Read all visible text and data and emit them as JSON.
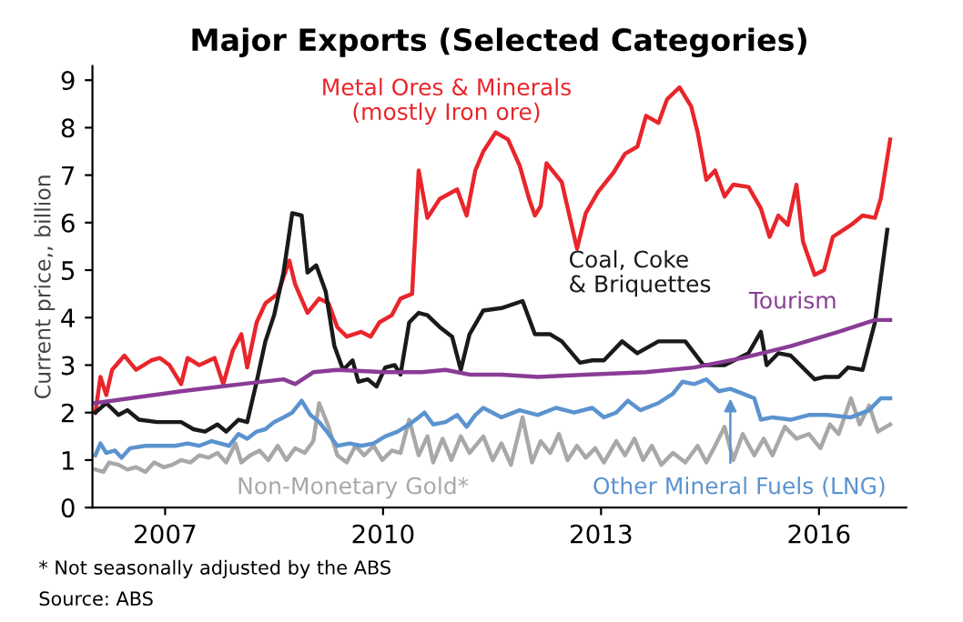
{
  "chart_data": {
    "type": "line",
    "title": "Major Exports (Selected Categories)",
    "ylabel": "Current price,, billion",
    "xlim": [
      2006.0,
      2017.2
    ],
    "xticks": [
      2007,
      2010,
      2013,
      2016
    ],
    "ylim": [
      0,
      9.3
    ],
    "yticks": [
      0,
      1,
      2,
      3,
      4,
      5,
      6,
      7,
      8,
      9
    ],
    "grid": false,
    "legend": false,
    "marker": "none",
    "line_style": "solid",
    "annotations": [
      "* Not seasonally adjusted by the ABS",
      "Source: ABS"
    ],
    "series": [
      {
        "name": "Metal Ores & Minerals\n(mostly Iron ore)",
        "color": "#e8262b",
        "x": [
          2006.04,
          2006.11,
          2006.19,
          2006.27,
          2006.44,
          2006.6,
          2006.81,
          2006.93,
          2007.06,
          2007.22,
          2007.31,
          2007.47,
          2007.68,
          2007.8,
          2007.93,
          2008.05,
          2008.13,
          2008.26,
          2008.38,
          2008.55,
          2008.71,
          2008.79,
          2008.96,
          2009.12,
          2009.25,
          2009.37,
          2009.5,
          2009.7,
          2009.83,
          2009.95,
          2010.12,
          2010.24,
          2010.4,
          2010.49,
          2010.61,
          2010.78,
          2011.02,
          2011.15,
          2011.27,
          2011.38,
          2011.55,
          2011.72,
          2011.88,
          2012.01,
          2012.09,
          2012.17,
          2012.25,
          2012.46,
          2012.67,
          2012.79,
          2012.96,
          2013.17,
          2013.33,
          2013.5,
          2013.62,
          2013.79,
          2013.91,
          2014.08,
          2014.24,
          2014.33,
          2014.45,
          2014.57,
          2014.7,
          2014.82,
          2015.03,
          2015.2,
          2015.32,
          2015.44,
          2015.57,
          2015.69,
          2015.78,
          2015.94,
          2016.07,
          2016.19,
          2016.44,
          2016.6,
          2016.77,
          2016.85,
          2016.98
        ],
        "values": [
          2.0,
          2.75,
          2.37,
          2.9,
          3.2,
          2.9,
          3.1,
          3.15,
          3.0,
          2.6,
          3.15,
          3.0,
          3.15,
          2.6,
          3.3,
          3.65,
          2.95,
          3.9,
          4.3,
          4.5,
          5.2,
          4.7,
          4.1,
          4.4,
          4.3,
          3.8,
          3.6,
          3.7,
          3.6,
          3.9,
          4.05,
          4.4,
          4.5,
          7.1,
          6.1,
          6.5,
          6.7,
          6.15,
          7.1,
          7.5,
          7.9,
          7.75,
          7.2,
          6.5,
          6.15,
          6.35,
          7.25,
          6.85,
          5.45,
          6.2,
          6.65,
          7.05,
          7.45,
          7.6,
          8.25,
          8.1,
          8.6,
          8.85,
          8.45,
          7.9,
          6.9,
          7.1,
          6.55,
          6.8,
          6.75,
          6.3,
          5.7,
          6.15,
          5.95,
          6.8,
          5.6,
          4.9,
          5.0,
          5.7,
          5.95,
          6.15,
          6.1,
          6.5,
          7.75
        ]
      },
      {
        "name": "Coal, Coke\n& Briquettes",
        "color": "#1a1a1a",
        "x": [
          2006.04,
          2006.19,
          2006.36,
          2006.48,
          2006.64,
          2006.89,
          2007.22,
          2007.39,
          2007.55,
          2007.72,
          2007.84,
          2008.01,
          2008.13,
          2008.26,
          2008.38,
          2008.5,
          2008.63,
          2008.75,
          2008.88,
          2008.96,
          2009.08,
          2009.21,
          2009.33,
          2009.45,
          2009.58,
          2009.66,
          2009.79,
          2009.91,
          2010.03,
          2010.16,
          2010.24,
          2010.36,
          2010.49,
          2010.61,
          2010.78,
          2010.95,
          2011.07,
          2011.19,
          2011.38,
          2011.63,
          2011.92,
          2012.09,
          2012.3,
          2012.46,
          2012.71,
          2012.88,
          2013.04,
          2013.29,
          2013.5,
          2013.79,
          2013.99,
          2014.16,
          2014.41,
          2014.7,
          2015.03,
          2015.2,
          2015.28,
          2015.44,
          2015.61,
          2015.94,
          2016.07,
          2016.27,
          2016.4,
          2016.6,
          2016.77,
          2016.94
        ],
        "values": [
          2.0,
          2.2,
          1.95,
          2.05,
          1.85,
          1.8,
          1.8,
          1.65,
          1.6,
          1.75,
          1.6,
          1.85,
          1.8,
          2.65,
          3.5,
          4.05,
          4.95,
          6.2,
          6.15,
          4.95,
          5.1,
          4.55,
          3.4,
          2.9,
          3.1,
          2.65,
          2.7,
          2.55,
          2.95,
          3.0,
          2.8,
          3.9,
          4.1,
          4.05,
          3.8,
          3.6,
          2.9,
          3.65,
          4.15,
          4.2,
          4.35,
          3.65,
          3.65,
          3.5,
          3.05,
          3.1,
          3.1,
          3.5,
          3.25,
          3.5,
          3.5,
          3.5,
          3.0,
          3.0,
          3.25,
          3.7,
          3.0,
          3.25,
          3.2,
          2.7,
          2.75,
          2.75,
          2.95,
          2.9,
          3.9,
          5.85
        ]
      },
      {
        "name": "Tourism",
        "color": "#8a3c96",
        "x": [
          2006.04,
          2007.22,
          2008.05,
          2008.63,
          2008.79,
          2009.04,
          2009.37,
          2010.03,
          2010.53,
          2010.86,
          2011.19,
          2011.63,
          2012.13,
          2012.79,
          2013.62,
          2014.28,
          2014.95,
          2015.61,
          2016.27,
          2016.77,
          2016.98
        ],
        "values": [
          2.2,
          2.45,
          2.6,
          2.7,
          2.6,
          2.85,
          2.9,
          2.85,
          2.85,
          2.9,
          2.8,
          2.8,
          2.75,
          2.8,
          2.85,
          2.95,
          3.15,
          3.4,
          3.7,
          3.95,
          3.95
        ]
      },
      {
        "name": "Non-Monetary Gold*",
        "color": "#a8a8a8",
        "x": [
          2006.04,
          2006.15,
          2006.23,
          2006.36,
          2006.48,
          2006.6,
          2006.73,
          2006.85,
          2006.98,
          2007.1,
          2007.22,
          2007.35,
          2007.47,
          2007.6,
          2007.72,
          2007.84,
          2007.97,
          2008.05,
          2008.17,
          2008.3,
          2008.42,
          2008.55,
          2008.67,
          2008.79,
          2008.92,
          2009.04,
          2009.12,
          2009.25,
          2009.37,
          2009.5,
          2009.62,
          2009.74,
          2009.87,
          2009.99,
          2010.12,
          2010.24,
          2010.36,
          2010.49,
          2010.61,
          2010.69,
          2010.82,
          2010.94,
          2011.07,
          2011.19,
          2011.38,
          2011.51,
          2011.63,
          2011.76,
          2011.92,
          2012.05,
          2012.17,
          2012.3,
          2012.42,
          2012.54,
          2012.67,
          2012.79,
          2012.92,
          2013.04,
          2013.21,
          2013.33,
          2013.46,
          2013.58,
          2013.7,
          2013.83,
          2013.99,
          2014.16,
          2014.33,
          2014.45,
          2014.57,
          2014.7,
          2014.82,
          2014.95,
          2015.11,
          2015.24,
          2015.36,
          2015.53,
          2015.69,
          2015.86,
          2016.02,
          2016.15,
          2016.27,
          2016.44,
          2016.56,
          2016.69,
          2016.81,
          2016.98
        ],
        "values": [
          0.8,
          0.75,
          0.95,
          0.9,
          0.8,
          0.85,
          0.75,
          0.95,
          0.85,
          0.9,
          1.0,
          0.95,
          1.1,
          1.05,
          1.15,
          0.95,
          1.35,
          0.95,
          1.1,
          1.2,
          1.0,
          1.3,
          1.0,
          1.25,
          1.15,
          1.4,
          2.2,
          1.7,
          1.1,
          0.95,
          1.3,
          1.1,
          1.3,
          1.0,
          1.2,
          1.15,
          1.85,
          1.1,
          1.5,
          0.95,
          1.45,
          1.0,
          1.5,
          1.15,
          1.5,
          1.0,
          1.35,
          0.9,
          1.9,
          0.95,
          1.4,
          1.15,
          1.55,
          1.0,
          1.3,
          1.05,
          1.25,
          0.95,
          1.4,
          1.1,
          1.45,
          1.0,
          1.3,
          0.9,
          1.15,
          0.95,
          1.3,
          0.95,
          1.3,
          1.7,
          1.0,
          1.55,
          1.1,
          1.45,
          1.1,
          1.7,
          1.45,
          1.55,
          1.25,
          1.75,
          1.55,
          2.3,
          1.75,
          2.15,
          1.6,
          1.75
        ]
      },
      {
        "name": "Other Mineral Fuels (LNG)",
        "color": "#5b93cf",
        "x": [
          2006.04,
          2006.11,
          2006.19,
          2006.31,
          2006.4,
          2006.52,
          2006.73,
          2006.89,
          2007.14,
          2007.31,
          2007.47,
          2007.64,
          2007.76,
          2007.88,
          2008.01,
          2008.13,
          2008.26,
          2008.38,
          2008.5,
          2008.63,
          2008.75,
          2008.88,
          2009.0,
          2009.12,
          2009.25,
          2009.37,
          2009.54,
          2009.7,
          2009.87,
          2010.03,
          2010.2,
          2010.36,
          2010.49,
          2010.57,
          2010.69,
          2010.86,
          2011.02,
          2011.15,
          2011.27,
          2011.38,
          2011.63,
          2011.88,
          2012.13,
          2012.38,
          2012.63,
          2012.88,
          2013.04,
          2013.21,
          2013.37,
          2013.54,
          2013.79,
          2013.99,
          2014.12,
          2014.28,
          2014.45,
          2014.62,
          2014.78,
          2014.95,
          2015.11,
          2015.2,
          2015.36,
          2015.61,
          2015.86,
          2016.11,
          2016.44,
          2016.69,
          2016.85,
          2016.98
        ],
        "values": [
          1.1,
          1.35,
          1.15,
          1.2,
          1.05,
          1.25,
          1.3,
          1.3,
          1.3,
          1.35,
          1.3,
          1.4,
          1.35,
          1.3,
          1.55,
          1.45,
          1.6,
          1.65,
          1.8,
          1.9,
          2.0,
          2.25,
          1.95,
          1.8,
          1.55,
          1.3,
          1.35,
          1.3,
          1.35,
          1.5,
          1.6,
          1.75,
          1.9,
          2.0,
          1.75,
          1.8,
          1.95,
          1.7,
          1.95,
          2.1,
          1.9,
          2.05,
          1.95,
          2.1,
          2.0,
          2.1,
          1.9,
          2.0,
          2.25,
          2.05,
          2.2,
          2.4,
          2.65,
          2.6,
          2.7,
          2.45,
          2.5,
          2.4,
          2.3,
          1.85,
          1.9,
          1.85,
          1.95,
          1.95,
          1.9,
          2.05,
          2.3,
          2.3
        ]
      }
    ]
  }
}
